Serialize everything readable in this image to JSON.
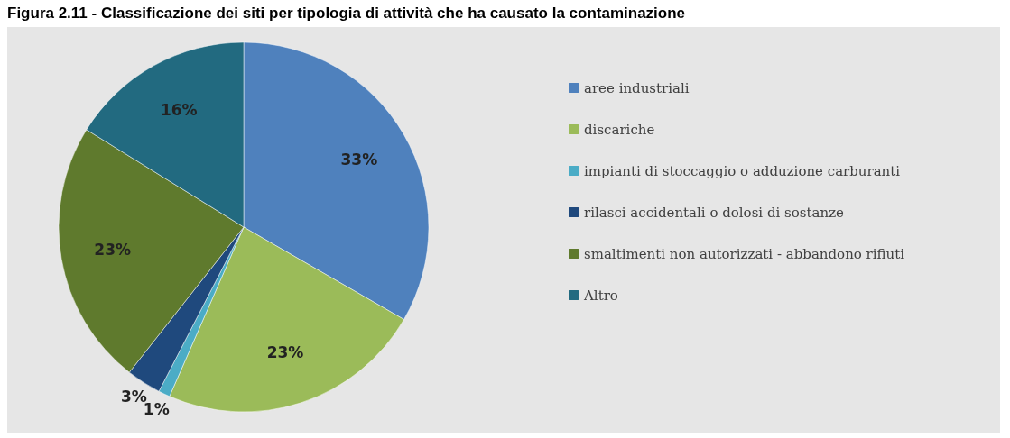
{
  "chart_data": {
    "type": "pie",
    "title": "Figura 2.11 - Classificazione dei siti per tipologia di attività che ha causato la contaminazione",
    "categories": [
      "aree industriali",
      "discariche",
      "impianti di stoccaggio o adduzione carburanti",
      "rilasci accidentali o dolosi di sostanze",
      "smaltimenti non autorizzati - abbandono rifiuti",
      "Altro"
    ],
    "values": [
      33,
      23,
      1,
      3,
      23,
      16
    ],
    "colors": [
      "#4f81bd",
      "#9bbb59",
      "#4bacc6",
      "#1f497d",
      "#5f7a2d",
      "#226a80"
    ],
    "value_labels": [
      "33%",
      "23%",
      "1%",
      "3%",
      "23%",
      "16%"
    ],
    "legend": "right"
  }
}
